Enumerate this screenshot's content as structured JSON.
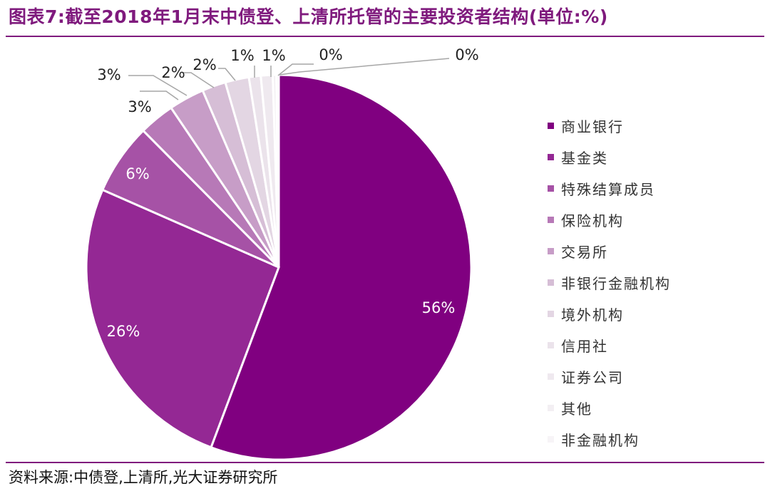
{
  "title": "图表7:截至2018年1月末中债登、上清所托管的主要投资者结构(单位:%)",
  "source": "资料来源:中债登,上清所,光大证券研究所",
  "chart_data": {
    "type": "pie",
    "title": "图表7:截至2018年1月末中债登、上清所托管的主要投资者结构(单位:%)",
    "unit": "%",
    "legend_position": "right",
    "slices": [
      {
        "label": "商业银行",
        "value": 56,
        "value_label": "56%",
        "color": "#800080"
      },
      {
        "label": "基金类",
        "value": 26,
        "value_label": "26%",
        "color": "#942894"
      },
      {
        "label": "特殊结算成员",
        "value": 6,
        "value_label": "6%",
        "color": "#a652a6"
      },
      {
        "label": "保险机构",
        "value": 3,
        "value_label": "3%",
        "color": "#b779b7"
      },
      {
        "label": "交易所",
        "value": 3,
        "value_label": "3%",
        "color": "#c79dc7"
      },
      {
        "label": "非银行金融机构",
        "value": 2,
        "value_label": "2%",
        "color": "#d6bed6"
      },
      {
        "label": "境外机构",
        "value": 2,
        "value_label": "2%",
        "color": "#e3d6e3"
      },
      {
        "label": "信用社",
        "value": 1,
        "value_label": "1%",
        "color": "#ebe3eb"
      },
      {
        "label": "证券公司",
        "value": 1,
        "value_label": "1%",
        "color": "#efe9ef"
      },
      {
        "label": "其他",
        "value": 0.3,
        "value_label": "0%",
        "color": "#f3eff3"
      },
      {
        "label": "非金融机构",
        "value": 0.2,
        "value_label": "0%",
        "color": "#f7f4f7"
      }
    ]
  }
}
